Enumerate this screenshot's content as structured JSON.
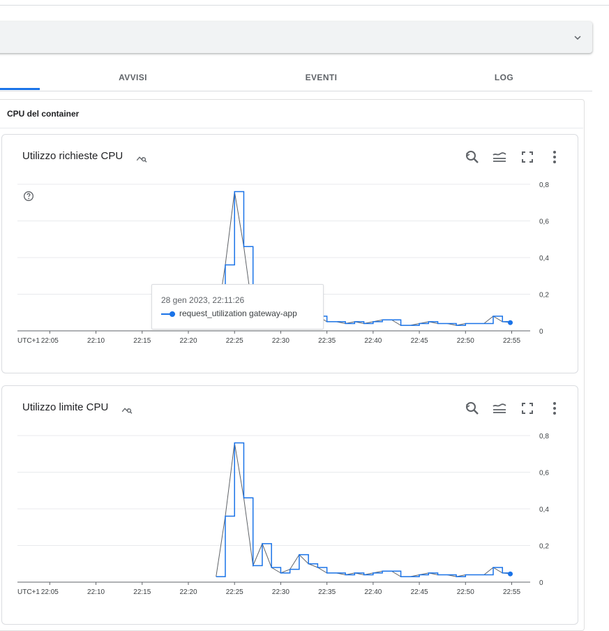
{
  "tabs": [
    {
      "label": ""
    },
    {
      "label": "AVVISI"
    },
    {
      "label": "EVENTI"
    },
    {
      "label": "LOG"
    }
  ],
  "section": {
    "title": "CPU del container"
  },
  "charts_meta": {
    "series_color": "#1a73e8",
    "timezone_label": "UTC+1",
    "icons": [
      "explore-icon",
      "zoom-reset-icon",
      "legend-icon",
      "fullscreen-icon",
      "more-vert-icon",
      "help-icon",
      "chevron-down-icon"
    ]
  },
  "tooltip": {
    "date": "28 gen 2023, 22:11:26",
    "series": "request_utilization gateway-app"
  },
  "chart_data": [
    {
      "type": "line",
      "title": "Utilizzo richieste CPU",
      "xlabel": "",
      "ylabel": "",
      "x_tick_labels": [
        "22:05",
        "22:10",
        "22:15",
        "22:20",
        "22:25",
        "22:30",
        "22:35",
        "22:40",
        "22:45",
        "22:50",
        "22:55"
      ],
      "y_tick_labels": [
        "0",
        "0,2",
        "0,4",
        "0,6",
        "0,8"
      ],
      "ylim": [
        0,
        0.8
      ],
      "grid": true,
      "series": [
        {
          "name": "request_utilization gateway-app",
          "x": [
            "22:23",
            "22:24",
            "22:25",
            "22:26",
            "22:27",
            "22:28",
            "22:29",
            "22:30",
            "22:31",
            "22:32",
            "22:33",
            "22:34",
            "22:35",
            "22:36",
            "22:37",
            "22:38",
            "22:39",
            "22:40",
            "22:41",
            "22:42",
            "22:43",
            "22:44",
            "22:45",
            "22:46",
            "22:47",
            "22:48",
            "22:49",
            "22:50",
            "22:51",
            "22:52",
            "22:53",
            "22:54",
            "22:55"
          ],
          "values": [
            0.03,
            0.36,
            0.76,
            0.46,
            0.09,
            0.21,
            0.08,
            0.05,
            0.07,
            0.15,
            0.1,
            0.08,
            0.05,
            0.05,
            0.04,
            0.05,
            0.04,
            0.05,
            0.06,
            0.06,
            0.03,
            0.03,
            0.04,
            0.05,
            0.04,
            0.04,
            0.03,
            0.04,
            0.04,
            0.04,
            0.08,
            0.05,
            0.045
          ]
        }
      ]
    },
    {
      "type": "line",
      "title": "Utilizzo limite CPU",
      "xlabel": "",
      "ylabel": "",
      "x_tick_labels": [
        "22:05",
        "22:10",
        "22:15",
        "22:20",
        "22:25",
        "22:30",
        "22:35",
        "22:40",
        "22:45",
        "22:50",
        "22:55"
      ],
      "y_tick_labels": [
        "0",
        "0,2",
        "0,4",
        "0,6",
        "0,8"
      ],
      "ylim": [
        0,
        0.8
      ],
      "grid": true,
      "series": [
        {
          "name": "",
          "x": [
            "22:23",
            "22:24",
            "22:25",
            "22:26",
            "22:27",
            "22:28",
            "22:29",
            "22:30",
            "22:31",
            "22:32",
            "22:33",
            "22:34",
            "22:35",
            "22:36",
            "22:37",
            "22:38",
            "22:39",
            "22:40",
            "22:41",
            "22:42",
            "22:43",
            "22:44",
            "22:45",
            "22:46",
            "22:47",
            "22:48",
            "22:49",
            "22:50",
            "22:51",
            "22:52",
            "22:53",
            "22:54",
            "22:55"
          ],
          "values": [
            0.03,
            0.36,
            0.76,
            0.46,
            0.09,
            0.21,
            0.08,
            0.05,
            0.07,
            0.15,
            0.1,
            0.08,
            0.05,
            0.05,
            0.04,
            0.05,
            0.04,
            0.05,
            0.06,
            0.06,
            0.03,
            0.03,
            0.04,
            0.05,
            0.04,
            0.04,
            0.03,
            0.04,
            0.04,
            0.04,
            0.08,
            0.05,
            0.045
          ]
        }
      ]
    }
  ]
}
